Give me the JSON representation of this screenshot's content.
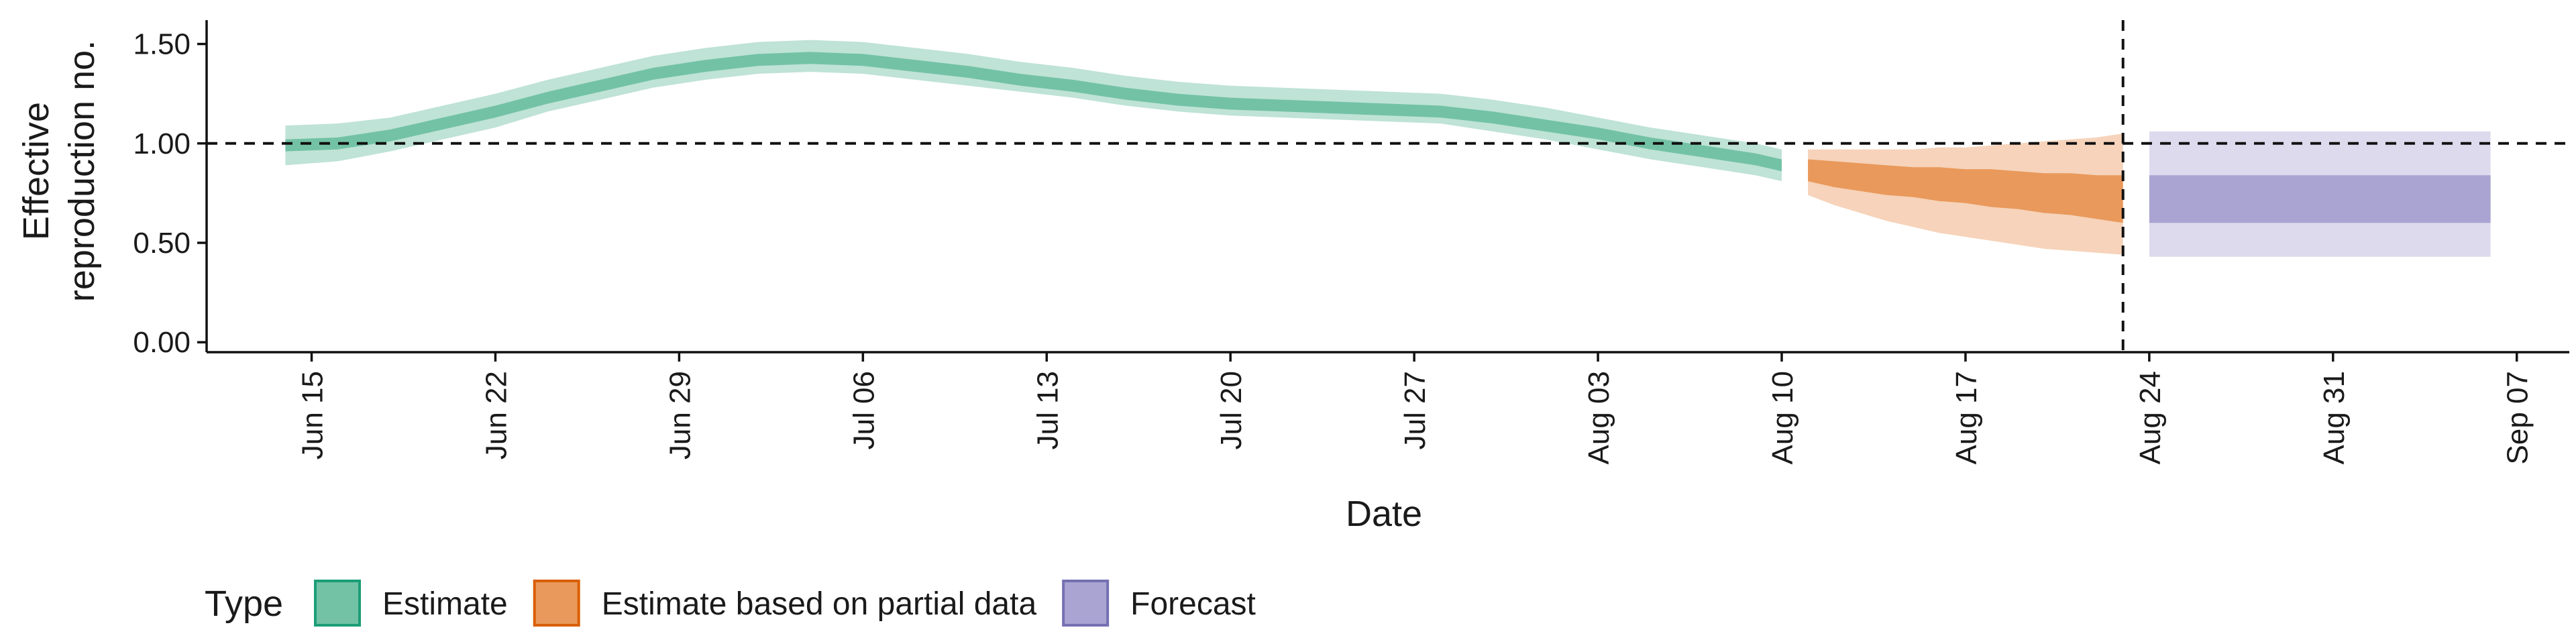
{
  "chart_data": {
    "type": "area",
    "title": "",
    "xlabel": "Date",
    "ylabel_lines": [
      "Effective",
      "reproduction no."
    ],
    "x_range": [
      "2020-06-11",
      "2020-09-09"
    ],
    "ylim": [
      -0.05,
      1.62
    ],
    "y_ticks": [
      0,
      0.5,
      1,
      1.5
    ],
    "y_tick_labels": [
      "0.00",
      "0.50",
      "1.00",
      "1.50"
    ],
    "x_ticks": [
      "2020-06-15",
      "2020-06-22",
      "2020-06-29",
      "2020-07-06",
      "2020-07-13",
      "2020-07-20",
      "2020-07-27",
      "2020-08-03",
      "2020-08-10",
      "2020-08-17",
      "2020-08-24",
      "2020-08-31",
      "2020-09-07"
    ],
    "x_tick_labels": [
      "Jun 15",
      "Jun 22",
      "Jun 29",
      "Jul 06",
      "Jul 13",
      "Jul 20",
      "Jul 27",
      "Aug 03",
      "Aug 10",
      "Aug 17",
      "Aug 24",
      "Aug 31",
      "Sep 07"
    ],
    "reference_line_y": 1.0,
    "reference_line_x": "2020-08-23",
    "grid": false,
    "legend": {
      "title": "Type",
      "position": "bottom-left",
      "items": [
        {
          "label": "Estimate",
          "fill": "#73c2a6",
          "border": "#1b9e77"
        },
        {
          "label": "Estimate based on partial data",
          "fill": "#e9995b",
          "border": "#d95f02"
        },
        {
          "label": "Forecast",
          "fill": "#a9a4d1",
          "border": "#7570b3"
        }
      ]
    },
    "series": [
      {
        "name": "Estimate",
        "inner_fill": "#73c2a6",
        "outer_fill": "#bfe3d6",
        "x": [
          "2020-06-14",
          "2020-06-16",
          "2020-06-18",
          "2020-06-20",
          "2020-06-22",
          "2020-06-24",
          "2020-06-26",
          "2020-06-28",
          "2020-06-30",
          "2020-07-02",
          "2020-07-04",
          "2020-07-06",
          "2020-07-08",
          "2020-07-10",
          "2020-07-12",
          "2020-07-14",
          "2020-07-16",
          "2020-07-18",
          "2020-07-20",
          "2020-07-22",
          "2020-07-24",
          "2020-07-26",
          "2020-07-28",
          "2020-07-30",
          "2020-08-01",
          "2020-08-03",
          "2020-08-05",
          "2020-08-07",
          "2020-08-09",
          "2020-08-10"
        ],
        "median": [
          0.99,
          1.0,
          1.04,
          1.1,
          1.16,
          1.23,
          1.29,
          1.35,
          1.39,
          1.42,
          1.43,
          1.42,
          1.39,
          1.36,
          1.32,
          1.29,
          1.25,
          1.22,
          1.2,
          1.19,
          1.18,
          1.17,
          1.16,
          1.13,
          1.09,
          1.05,
          1.0,
          0.96,
          0.92,
          0.89
        ],
        "inner_lower": [
          0.96,
          0.97,
          1.01,
          1.07,
          1.13,
          1.2,
          1.26,
          1.32,
          1.36,
          1.39,
          1.4,
          1.39,
          1.36,
          1.33,
          1.29,
          1.26,
          1.22,
          1.19,
          1.17,
          1.16,
          1.15,
          1.14,
          1.13,
          1.1,
          1.06,
          1.02,
          0.97,
          0.93,
          0.89,
          0.86
        ],
        "inner_upper": [
          1.02,
          1.03,
          1.07,
          1.13,
          1.19,
          1.26,
          1.32,
          1.38,
          1.42,
          1.45,
          1.46,
          1.45,
          1.42,
          1.39,
          1.35,
          1.32,
          1.28,
          1.25,
          1.23,
          1.22,
          1.21,
          1.2,
          1.19,
          1.16,
          1.12,
          1.08,
          1.03,
          0.99,
          0.95,
          0.92
        ],
        "outer_lower": [
          0.89,
          0.91,
          0.96,
          1.02,
          1.08,
          1.16,
          1.22,
          1.28,
          1.32,
          1.35,
          1.36,
          1.35,
          1.32,
          1.29,
          1.26,
          1.23,
          1.19,
          1.16,
          1.14,
          1.13,
          1.12,
          1.11,
          1.1,
          1.06,
          1.02,
          0.97,
          0.92,
          0.88,
          0.84,
          0.81
        ],
        "outer_upper": [
          1.09,
          1.1,
          1.13,
          1.19,
          1.25,
          1.32,
          1.38,
          1.44,
          1.48,
          1.51,
          1.52,
          1.51,
          1.48,
          1.45,
          1.41,
          1.38,
          1.34,
          1.31,
          1.29,
          1.28,
          1.27,
          1.26,
          1.25,
          1.22,
          1.18,
          1.13,
          1.08,
          1.04,
          1.0,
          0.97
        ]
      },
      {
        "name": "Estimate based on partial data",
        "inner_fill": "#e9995b",
        "outer_fill": "#f6d3ba",
        "x": [
          "2020-08-11",
          "2020-08-12",
          "2020-08-13",
          "2020-08-14",
          "2020-08-15",
          "2020-08-16",
          "2020-08-17",
          "2020-08-18",
          "2020-08-19",
          "2020-08-20",
          "2020-08-21",
          "2020-08-22",
          "2020-08-23"
        ],
        "median": [
          0.86,
          0.84,
          0.82,
          0.81,
          0.8,
          0.79,
          0.78,
          0.77,
          0.76,
          0.75,
          0.74,
          0.73,
          0.72
        ],
        "inner_lower": [
          0.81,
          0.78,
          0.76,
          0.74,
          0.73,
          0.71,
          0.7,
          0.68,
          0.67,
          0.65,
          0.64,
          0.62,
          0.6
        ],
        "inner_upper": [
          0.92,
          0.91,
          0.9,
          0.89,
          0.88,
          0.88,
          0.87,
          0.87,
          0.86,
          0.85,
          0.85,
          0.84,
          0.84
        ],
        "outer_lower": [
          0.74,
          0.69,
          0.65,
          0.61,
          0.58,
          0.55,
          0.53,
          0.51,
          0.49,
          0.47,
          0.46,
          0.45,
          0.44
        ],
        "outer_upper": [
          0.97,
          0.97,
          0.97,
          0.97,
          0.97,
          0.98,
          0.98,
          0.99,
          1.0,
          1.01,
          1.02,
          1.03,
          1.05
        ]
      },
      {
        "name": "Forecast",
        "inner_fill": "#a9a4d1",
        "outer_fill": "#dcdaec",
        "x": [
          "2020-08-24",
          "2020-09-06"
        ],
        "inner_lower": [
          0.6,
          0.6
        ],
        "inner_upper": [
          0.84,
          0.84
        ],
        "outer_lower": [
          0.43,
          0.43
        ],
        "outer_upper": [
          1.06,
          1.06
        ]
      }
    ]
  }
}
